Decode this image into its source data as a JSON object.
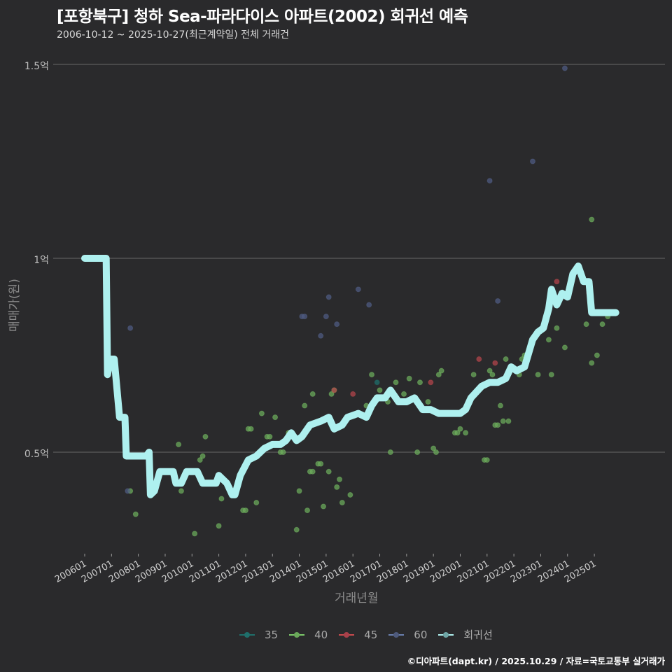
{
  "header": {
    "title": "[포항북구] 청하 Sea-파라다이스 아파트(2002) 회귀선 예측",
    "subtitle": "2006-10-12 ~ 2025-10-27(최근계약일) 전체 거래건"
  },
  "axes": {
    "ylabel": "매매가(원)",
    "xlabel": "거래년월",
    "yticks": [
      "1.5억",
      "1억",
      "0.5억"
    ],
    "xticks": [
      "200601",
      "200701",
      "200801",
      "200901",
      "201001",
      "201101",
      "201201",
      "201301",
      "201401",
      "201501",
      "201601",
      "201701",
      "201801",
      "201901",
      "202001",
      "202101",
      "202201",
      "202301",
      "202401",
      "202501"
    ]
  },
  "legend": {
    "items": [
      {
        "label": "35",
        "color": "#1f6f6b"
      },
      {
        "label": "40",
        "color": "#7cc96a"
      },
      {
        "label": "45",
        "color": "#c94a4e"
      },
      {
        "label": "60",
        "color": "#5a6a94"
      },
      {
        "label": "회귀선",
        "color": "#aef0ef"
      }
    ]
  },
  "footer": {
    "credit": "©디아파트(dapt.kr) / 2025.10.29 / 자료=국토교통부 실거래가"
  },
  "chart_data": {
    "type": "scatter",
    "title": "[포항북구] 청하 Sea-파라다이스 아파트(2002) 회귀선 예측",
    "subtitle": "2006-10-12 ~ 2025-10-27(최근계약일) 전체 거래건",
    "xlabel": "거래년월",
    "ylabel": "매매가(원)",
    "ylim": [
      0.22,
      1.55
    ],
    "y_unit": "억",
    "grid": true,
    "legend_position": "bottom",
    "x_range": [
      "200601",
      "202510"
    ],
    "series": [
      {
        "name": "35",
        "color": "#1f6f6b",
        "points": [
          [
            2016.9,
            0.68
          ]
        ]
      },
      {
        "name": "40",
        "color": "#7cc96a",
        "points": [
          [
            2007.7,
            0.4
          ],
          [
            2007.9,
            0.34
          ],
          [
            2009.5,
            0.52
          ],
          [
            2009.6,
            0.4
          ],
          [
            2010.1,
            0.29
          ],
          [
            2010.3,
            0.48
          ],
          [
            2010.4,
            0.49
          ],
          [
            2010.5,
            0.54
          ],
          [
            2011.0,
            0.31
          ],
          [
            2011.1,
            0.38
          ],
          [
            2011.9,
            0.35
          ],
          [
            2012.0,
            0.35
          ],
          [
            2012.1,
            0.56
          ],
          [
            2012.2,
            0.56
          ],
          [
            2012.4,
            0.37
          ],
          [
            2012.6,
            0.6
          ],
          [
            2012.8,
            0.54
          ],
          [
            2012.9,
            0.54
          ],
          [
            2013.1,
            0.59
          ],
          [
            2013.3,
            0.5
          ],
          [
            2013.4,
            0.5
          ],
          [
            2013.6,
            0.55
          ],
          [
            2013.9,
            0.3
          ],
          [
            2014.0,
            0.4
          ],
          [
            2014.2,
            0.62
          ],
          [
            2014.3,
            0.35
          ],
          [
            2014.4,
            0.45
          ],
          [
            2014.5,
            0.45
          ],
          [
            2014.5,
            0.65
          ],
          [
            2014.7,
            0.47
          ],
          [
            2014.8,
            0.47
          ],
          [
            2014.9,
            0.36
          ],
          [
            2015.1,
            0.45
          ],
          [
            2015.2,
            0.65
          ],
          [
            2015.3,
            0.66
          ],
          [
            2015.4,
            0.41
          ],
          [
            2015.5,
            0.43
          ],
          [
            2015.6,
            0.37
          ],
          [
            2015.9,
            0.39
          ],
          [
            2016.2,
            0.6
          ],
          [
            2016.5,
            0.62
          ],
          [
            2016.7,
            0.7
          ],
          [
            2017.0,
            0.66
          ],
          [
            2017.3,
            0.63
          ],
          [
            2017.4,
            0.5
          ],
          [
            2017.6,
            0.68
          ],
          [
            2017.9,
            0.65
          ],
          [
            2018.1,
            0.69
          ],
          [
            2018.4,
            0.5
          ],
          [
            2018.5,
            0.68
          ],
          [
            2018.8,
            0.63
          ],
          [
            2019.0,
            0.51
          ],
          [
            2019.1,
            0.5
          ],
          [
            2019.2,
            0.7
          ],
          [
            2019.3,
            0.71
          ],
          [
            2019.6,
            0.6
          ],
          [
            2019.8,
            0.55
          ],
          [
            2019.9,
            0.55
          ],
          [
            2020.0,
            0.56
          ],
          [
            2020.2,
            0.55
          ],
          [
            2020.5,
            0.7
          ],
          [
            2020.9,
            0.48
          ],
          [
            2021.1,
            0.71
          ],
          [
            2021.2,
            0.7
          ],
          [
            2021.3,
            0.57
          ],
          [
            2021.4,
            0.57
          ],
          [
            2021.5,
            0.62
          ],
          [
            2021.6,
            0.58
          ],
          [
            2021.7,
            0.74
          ],
          [
            2021.8,
            0.58
          ],
          [
            2022.2,
            0.7
          ],
          [
            2022.3,
            0.74
          ],
          [
            2022.4,
            0.75
          ],
          [
            2022.9,
            0.7
          ],
          [
            2023.3,
            0.79
          ],
          [
            2023.4,
            0.7
          ],
          [
            2023.6,
            0.82
          ],
          [
            2023.9,
            0.77
          ],
          [
            2024.7,
            0.83
          ],
          [
            2024.9,
            0.73
          ],
          [
            2025.1,
            0.75
          ],
          [
            2025.3,
            0.83
          ],
          [
            2025.5,
            0.85
          ],
          [
            2024.9,
            1.1
          ],
          [
            2021.0,
            0.48
          ]
        ]
      },
      {
        "name": "45",
        "color": "#c94a4e",
        "points": [
          [
            2015.3,
            0.66
          ],
          [
            2016.0,
            0.65
          ],
          [
            2018.9,
            0.68
          ],
          [
            2020.7,
            0.74
          ],
          [
            2021.3,
            0.73
          ],
          [
            2024.8,
            0.91
          ],
          [
            2023.6,
            0.94
          ]
        ]
      },
      {
        "name": "60",
        "color": "#5a6a94",
        "points": [
          [
            2007.6,
            0.4
          ],
          [
            2007.7,
            0.82
          ],
          [
            2014.1,
            0.85
          ],
          [
            2014.2,
            0.85
          ],
          [
            2014.8,
            0.8
          ],
          [
            2015.0,
            0.85
          ],
          [
            2015.1,
            0.9
          ],
          [
            2015.4,
            0.83
          ],
          [
            2016.2,
            0.92
          ],
          [
            2016.6,
            0.88
          ],
          [
            2021.1,
            1.2
          ],
          [
            2021.4,
            0.89
          ],
          [
            2022.7,
            1.25
          ],
          [
            2023.9,
            1.49
          ]
        ]
      },
      {
        "name": "회귀선",
        "color": "#aef0ef",
        "points": [
          [
            2006.0,
            1.0
          ],
          [
            2006.8,
            1.0
          ],
          [
            2006.85,
            0.7
          ],
          [
            2006.95,
            0.74
          ],
          [
            2007.1,
            0.74
          ],
          [
            2007.3,
            0.59
          ],
          [
            2007.5,
            0.59
          ],
          [
            2007.55,
            0.49
          ],
          [
            2008.3,
            0.49
          ],
          [
            2008.4,
            0.5
          ],
          [
            2008.45,
            0.39
          ],
          [
            2008.6,
            0.4
          ],
          [
            2008.8,
            0.45
          ],
          [
            2009.0,
            0.45
          ],
          [
            2009.3,
            0.45
          ],
          [
            2009.4,
            0.42
          ],
          [
            2009.6,
            0.42
          ],
          [
            2009.8,
            0.45
          ],
          [
            2010.2,
            0.45
          ],
          [
            2010.4,
            0.42
          ],
          [
            2010.9,
            0.42
          ],
          [
            2011.0,
            0.44
          ],
          [
            2011.3,
            0.42
          ],
          [
            2011.5,
            0.39
          ],
          [
            2011.6,
            0.39
          ],
          [
            2011.8,
            0.44
          ],
          [
            2012.1,
            0.48
          ],
          [
            2012.4,
            0.49
          ],
          [
            2012.7,
            0.51
          ],
          [
            2013.0,
            0.52
          ],
          [
            2013.3,
            0.52
          ],
          [
            2013.5,
            0.53
          ],
          [
            2013.7,
            0.55
          ],
          [
            2013.9,
            0.53
          ],
          [
            2014.1,
            0.54
          ],
          [
            2014.4,
            0.57
          ],
          [
            2014.8,
            0.58
          ],
          [
            2015.1,
            0.59
          ],
          [
            2015.3,
            0.56
          ],
          [
            2015.6,
            0.57
          ],
          [
            2015.8,
            0.59
          ],
          [
            2016.2,
            0.6
          ],
          [
            2016.5,
            0.59
          ],
          [
            2016.7,
            0.62
          ],
          [
            2016.9,
            0.64
          ],
          [
            2017.2,
            0.64
          ],
          [
            2017.4,
            0.66
          ],
          [
            2017.7,
            0.63
          ],
          [
            2018.0,
            0.63
          ],
          [
            2018.3,
            0.64
          ],
          [
            2018.6,
            0.61
          ],
          [
            2018.9,
            0.61
          ],
          [
            2019.2,
            0.6
          ],
          [
            2019.5,
            0.6
          ],
          [
            2019.8,
            0.6
          ],
          [
            2020.0,
            0.6
          ],
          [
            2020.2,
            0.61
          ],
          [
            2020.4,
            0.64
          ],
          [
            2020.8,
            0.67
          ],
          [
            2021.1,
            0.68
          ],
          [
            2021.4,
            0.68
          ],
          [
            2021.7,
            0.69
          ],
          [
            2021.9,
            0.72
          ],
          [
            2022.1,
            0.71
          ],
          [
            2022.4,
            0.72
          ],
          [
            2022.7,
            0.79
          ],
          [
            2022.9,
            0.81
          ],
          [
            2023.1,
            0.82
          ],
          [
            2023.3,
            0.87
          ],
          [
            2023.4,
            0.92
          ],
          [
            2023.6,
            0.88
          ],
          [
            2023.8,
            0.91
          ],
          [
            2024.0,
            0.9
          ],
          [
            2024.2,
            0.96
          ],
          [
            2024.4,
            0.98
          ],
          [
            2024.6,
            0.94
          ],
          [
            2024.8,
            0.94
          ],
          [
            2024.9,
            0.86
          ],
          [
            2025.2,
            0.86
          ],
          [
            2025.5,
            0.86
          ],
          [
            2025.8,
            0.86
          ]
        ]
      }
    ]
  }
}
